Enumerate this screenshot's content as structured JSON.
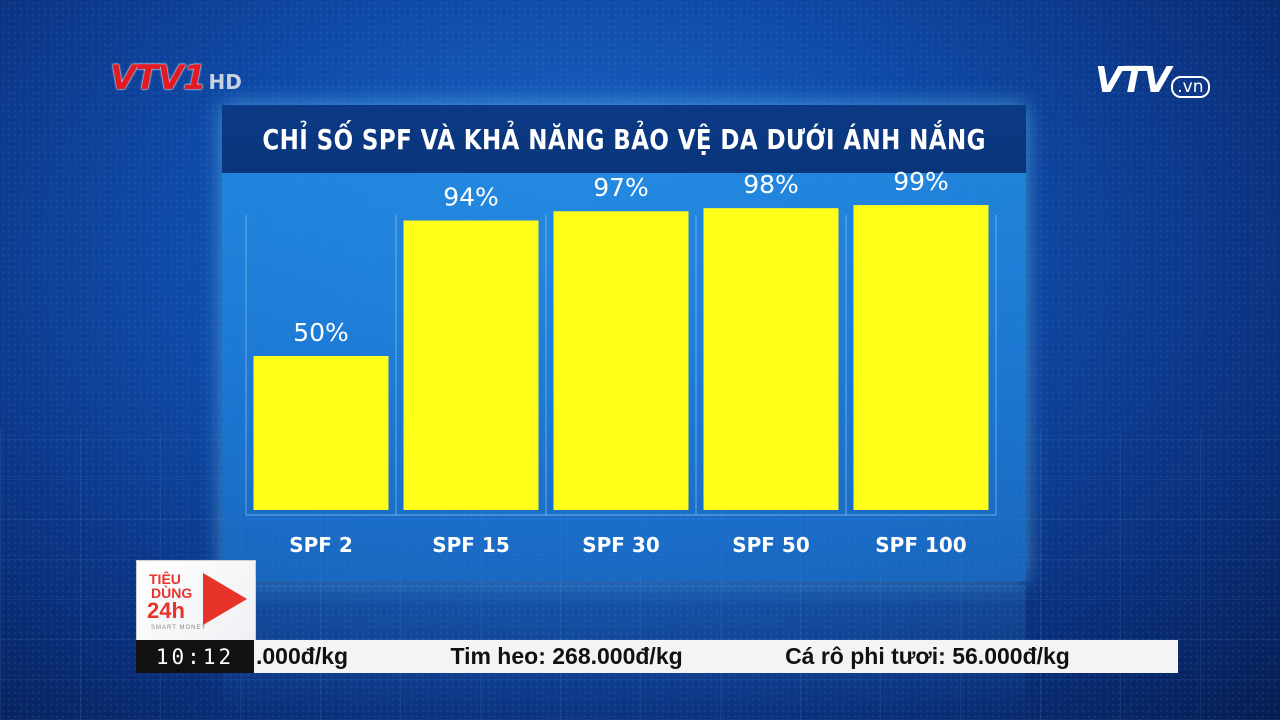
{
  "channel": {
    "logo_text": "VTV1",
    "logo_suffix": "HD",
    "site_logo": "VTV",
    "site_suffix": ".vn"
  },
  "chart_data": {
    "type": "bar",
    "title": "CHỈ SỐ SPF VÀ KHẢ NĂNG BẢO VỆ DA DƯỚI ÁNH NẮNG",
    "categories": [
      "SPF 2",
      "SPF 15",
      "SPF 30",
      "SPF 50",
      "SPF 100"
    ],
    "values": [
      50,
      94,
      97,
      98,
      99
    ],
    "data_labels": [
      "50%",
      "94%",
      "97%",
      "98%",
      "99%"
    ],
    "ylim": [
      0,
      100
    ],
    "unit": "%",
    "bar_color": "#ffff1a",
    "grid": false,
    "legend": "none"
  },
  "badge": {
    "line1": "TIÊU",
    "line2": "DÙNG",
    "line3": "24h",
    "line4": "SMART MONEY",
    "accent": "#e8332a"
  },
  "ticker": {
    "time": "10:12",
    "items": [
      ".000đ/kg",
      "Tim heo: 268.000đ/kg",
      "Cá rô phi tươi: 56.000đ/kg"
    ]
  }
}
